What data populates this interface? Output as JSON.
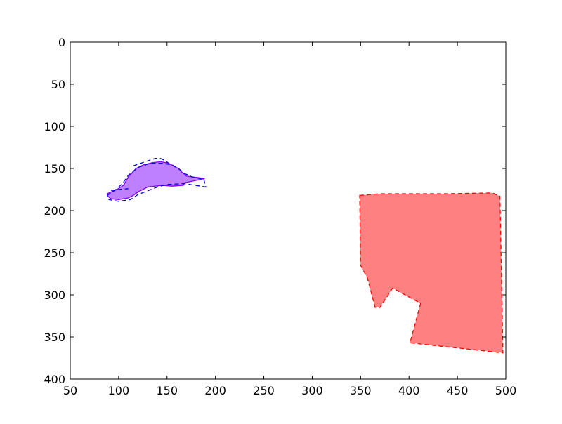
{
  "chart_data": {
    "type": "area",
    "title": "",
    "xlabel": "",
    "ylabel": "",
    "xlim": [
      50,
      500
    ],
    "ylim": [
      400,
      0
    ],
    "y_inverted": true,
    "grid": false,
    "legend": "none",
    "xticks": [
      50,
      100,
      150,
      200,
      250,
      300,
      350,
      400,
      450,
      500
    ],
    "yticks": [
      0,
      50,
      100,
      150,
      200,
      250,
      300,
      350,
      400
    ],
    "xtick_labels": [
      "50",
      "100",
      "150",
      "200",
      "250",
      "300",
      "350",
      "400",
      "450",
      "500"
    ],
    "ytick_labels": [
      "0",
      "50",
      "100",
      "150",
      "200",
      "250",
      "300",
      "350",
      "400"
    ],
    "series": [
      {
        "kind": "filled_polygon",
        "fill": "#ff8080",
        "edge": "#ff0000",
        "dashed": true,
        "points": [
          [
            349,
            182
          ],
          [
            370,
            180
          ],
          [
            440,
            180
          ],
          [
            486,
            179
          ],
          [
            494,
            183
          ],
          [
            497,
            369
          ],
          [
            490,
            368
          ],
          [
            401,
            357
          ],
          [
            412,
            310
          ],
          [
            383,
            292
          ],
          [
            370,
            315
          ],
          [
            365,
            315
          ],
          [
            357,
            280
          ],
          [
            350,
            265
          ],
          [
            349,
            182
          ]
        ]
      },
      {
        "kind": "filled_polygon",
        "fill": "#bf80ff",
        "edge": "#8000ff",
        "dashed": false,
        "points": [
          [
            88,
            180
          ],
          [
            98,
            175
          ],
          [
            105,
            170
          ],
          [
            110,
            160
          ],
          [
            118,
            150
          ],
          [
            125,
            146
          ],
          [
            135,
            143
          ],
          [
            144,
            142
          ],
          [
            152,
            144
          ],
          [
            158,
            148
          ],
          [
            162,
            150
          ],
          [
            165,
            154
          ],
          [
            170,
            159
          ],
          [
            176,
            160
          ],
          [
            183,
            161
          ],
          [
            189,
            162
          ],
          [
            168,
            167
          ],
          [
            167,
            170
          ],
          [
            155,
            171
          ],
          [
            145,
            170
          ],
          [
            130,
            172
          ],
          [
            120,
            178
          ],
          [
            115,
            182
          ],
          [
            110,
            185
          ],
          [
            100,
            187
          ],
          [
            92,
            186
          ],
          [
            89,
            183
          ],
          [
            88,
            180
          ]
        ]
      },
      {
        "kind": "outline",
        "fill": "none",
        "edge": "#0000cc",
        "dashed": true,
        "points": [
          [
            88,
            182
          ],
          [
            96,
            176
          ],
          [
            104,
            168
          ],
          [
            110,
            158
          ],
          [
            120,
            149
          ],
          [
            132,
            144
          ],
          [
            146,
            144
          ],
          [
            156,
            146
          ],
          [
            164,
            152
          ],
          [
            168,
            156
          ],
          [
            176,
            160
          ],
          [
            188,
            163
          ],
          [
            190,
            172
          ],
          [
            168,
            168
          ],
          [
            150,
            169
          ],
          [
            140,
            172
          ],
          [
            120,
            181
          ],
          [
            112,
            187
          ],
          [
            100,
            189
          ],
          [
            90,
            187
          ],
          [
            88,
            182
          ]
        ]
      },
      {
        "kind": "outline",
        "fill": "none",
        "edge": "#0000cc",
        "dashed": true,
        "points": [
          [
            115,
            147
          ],
          [
            130,
            141
          ],
          [
            138,
            138
          ],
          [
            143,
            138
          ],
          [
            147,
            140
          ],
          [
            152,
            144
          ]
        ]
      },
      {
        "kind": "outline",
        "fill": "none",
        "edge": "#0000cc",
        "dashed": true,
        "points": [
          [
            92,
            176
          ],
          [
            100,
            175
          ],
          [
            110,
            174
          ]
        ]
      }
    ]
  },
  "colors": {
    "axis": "#000000",
    "background": "#ffffff"
  }
}
